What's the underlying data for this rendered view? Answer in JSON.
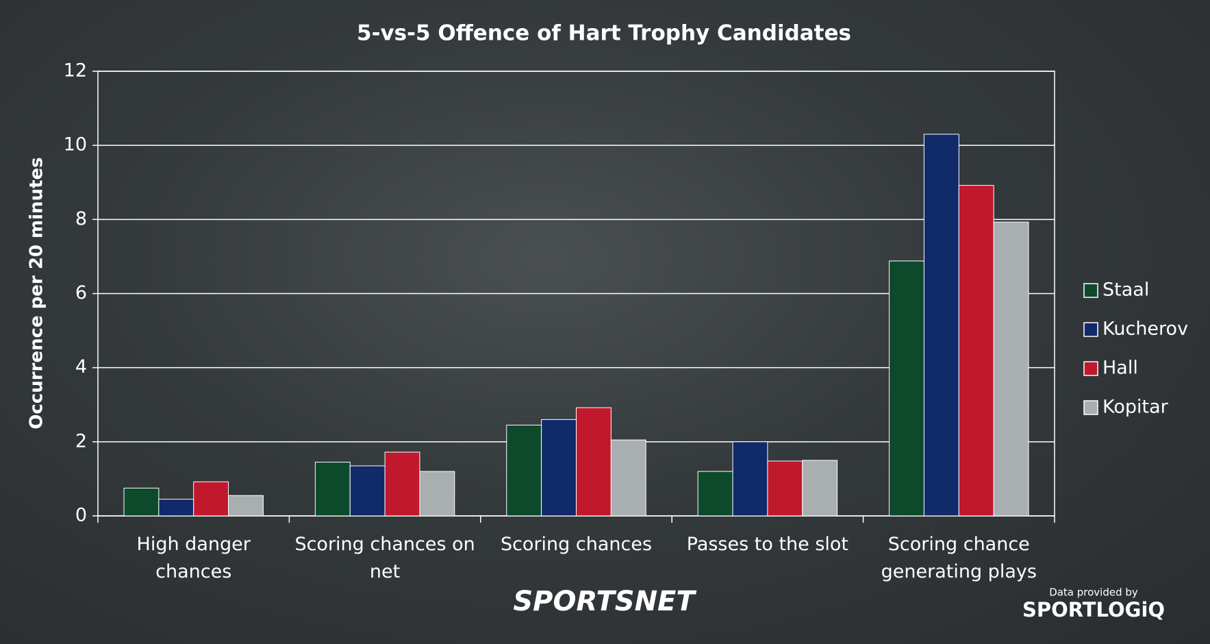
{
  "chart_data": {
    "type": "bar",
    "title": "5-vs-5 Offence of Hart Trophy Candidates",
    "y_label": "Occurrence per 20 minutes",
    "categories": [
      "High danger chances",
      "Scoring chances on net",
      "Scoring chances",
      "Passes to the slot",
      "Scoring chance generating plays"
    ],
    "series": [
      {
        "name": "Staal",
        "color": "#0d4a2c",
        "values": [
          0.75,
          1.45,
          2.45,
          1.2,
          6.88
        ]
      },
      {
        "name": "Kucherov",
        "color": "#102a6a",
        "values": [
          0.45,
          1.35,
          2.6,
          2.0,
          10.3
        ]
      },
      {
        "name": "Hall",
        "color": "#c0182c",
        "values": [
          0.92,
          1.72,
          2.92,
          1.48,
          8.92
        ]
      },
      {
        "name": "Kopitar",
        "color": "#a9aeb1",
        "values": [
          0.55,
          1.2,
          2.05,
          1.5,
          7.93
        ]
      }
    ],
    "ylim": [
      0,
      12
    ],
    "yticks": [
      0,
      2,
      4,
      6,
      8,
      10,
      12
    ],
    "grid": true,
    "legend": "right"
  },
  "branding": {
    "logo": "SPORTSNET",
    "credit_label": "Data provided by",
    "credit_source": "SPORTLOGiQ"
  }
}
